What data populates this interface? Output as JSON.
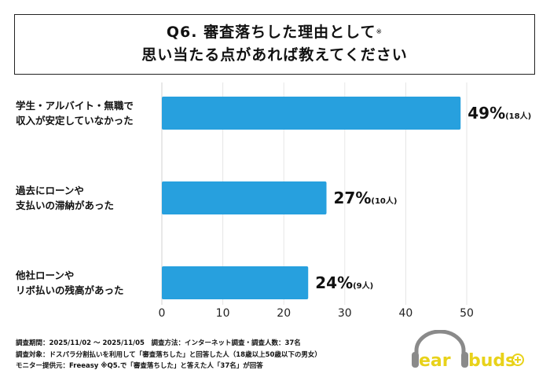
{
  "title": {
    "line1": "Q6. 審査落ちした理由として",
    "note_mark": "※",
    "line2": "思い当たる点があれば教えてください"
  },
  "chart_data": {
    "type": "bar",
    "orientation": "horizontal",
    "categories": [
      [
        "学生・アルバイト・無職で",
        "収入が安定していなかった"
      ],
      [
        "過去にローンや",
        "支払いの滞納があった"
      ],
      [
        "他社ローンや",
        "リボ払いの残高があった"
      ]
    ],
    "values": [
      49,
      27,
      24
    ],
    "value_labels": [
      "49%",
      "27%",
      "24%"
    ],
    "count_labels": [
      "(18人)",
      "(10人)",
      "(9人)"
    ],
    "xlim": [
      0,
      50
    ],
    "xticks": [
      "0",
      "10",
      "20",
      "30",
      "40",
      "50"
    ],
    "grid": true,
    "bar_color": "#27a0de"
  },
  "footer": {
    "line1": "調査期間：2025/11/02 ～ 2025/11/05　調査方法：インターネット調査・調査人数：37名",
    "line2": "調査対象：ドスパラ分割払いを利用して「審査落ちした」と回答した人（18歳以上50歳以下の男女）",
    "line3": "モニター提供元：Freeasy ※Q5.で「審査落ちした」と答えた人「37名」が回答"
  },
  "logo": {
    "text": "earbuds",
    "plus": "+",
    "color": "#e8d21a",
    "headphone_color": "#8a8a8a"
  }
}
